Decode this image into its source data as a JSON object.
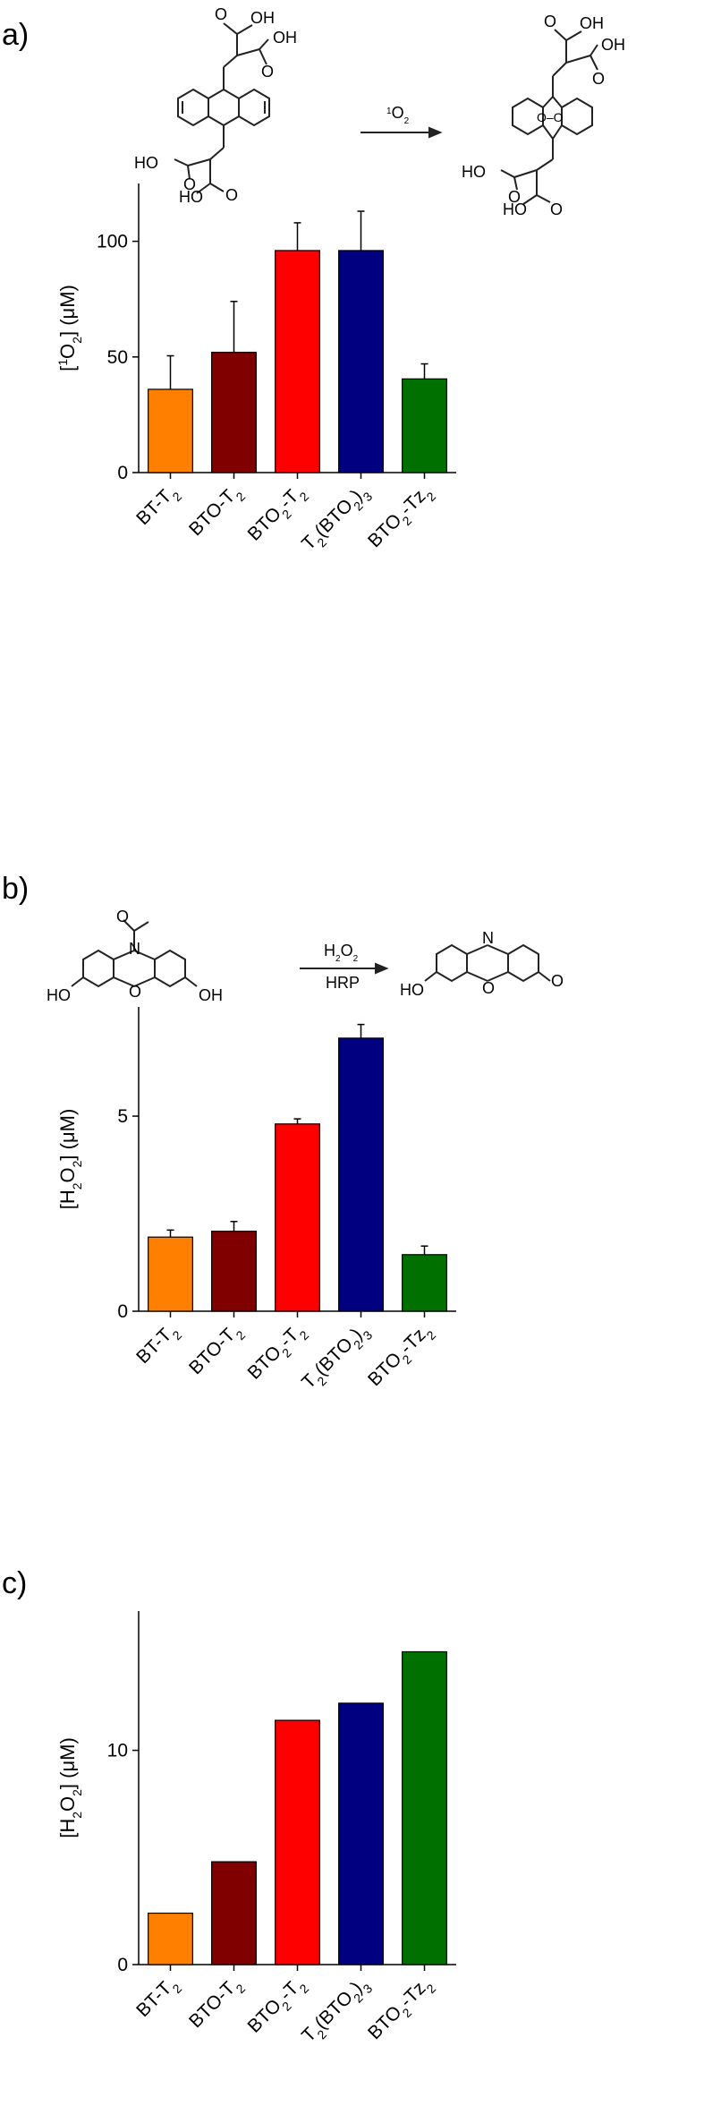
{
  "panels": [
    {
      "letter": "a)"
    },
    {
      "letter": "b)"
    },
    {
      "letter": "c)"
    }
  ],
  "reactions": {
    "a": {
      "reagent_html": "<tspan baseline-shift='super' font-size='11'>1</tspan>O<tspan baseline-shift='sub' font-size='11'>2</tspan>",
      "groups": [
        "OH",
        "OH",
        "O",
        "O",
        "HO",
        "HO",
        "O",
        "O",
        "OH",
        "OH",
        "O",
        "O",
        "HO",
        "HO",
        "O",
        "O",
        "O–O"
      ]
    },
    "b": {
      "reagent_top": "H2O2",
      "reagent_bottom": "HRP",
      "groups": [
        "N",
        "O",
        "HO",
        "O",
        "OH",
        "O",
        "N",
        "HO",
        "O",
        "O"
      ]
    }
  },
  "colors": {
    "BT-T2": "#ff8000",
    "BTO-T2": "#800000",
    "BTO2-T2": "#ff0000",
    "T2(BTO2)3": "#000080",
    "BTO2-Tz2": "#007000"
  },
  "chart_data": [
    {
      "type": "bar",
      "categories": [
        "BT-T2",
        "BTO-T2",
        "BTO2-T2",
        "T2(BTO2)3",
        "BTO2-Tz2"
      ],
      "values": [
        36,
        52,
        96,
        96,
        40.5
      ],
      "error_bars": [
        14.5,
        22,
        12,
        17,
        6.5
      ],
      "ylabel": "[1O2] (μM)",
      "ylim": [
        0,
        125
      ],
      "yticks": [
        0,
        50,
        100
      ]
    },
    {
      "type": "bar",
      "categories": [
        "BT-T2",
        "BTO-T2",
        "BTO2-T2",
        "T2(BTO2)3",
        "BTO2-Tz2"
      ],
      "values": [
        1.9,
        2.05,
        4.8,
        7.0,
        1.45
      ],
      "error_bars": [
        0.18,
        0.25,
        0.13,
        0.35,
        0.22
      ],
      "ylabel": "[H2O2] (μM)",
      "ylim": [
        0,
        7.8
      ],
      "yticks": [
        0,
        5
      ]
    },
    {
      "type": "bar",
      "categories": [
        "BT-T2",
        "BTO-T2",
        "BTO2-T2",
        "T2(BTO2)3",
        "BTO2-Tz2"
      ],
      "values": [
        2.4,
        4.8,
        11.4,
        12.2,
        14.6
      ],
      "ylabel": "[H2O2] (μM)",
      "ylim": [
        0,
        16.5
      ],
      "yticks": [
        0,
        10
      ]
    }
  ]
}
